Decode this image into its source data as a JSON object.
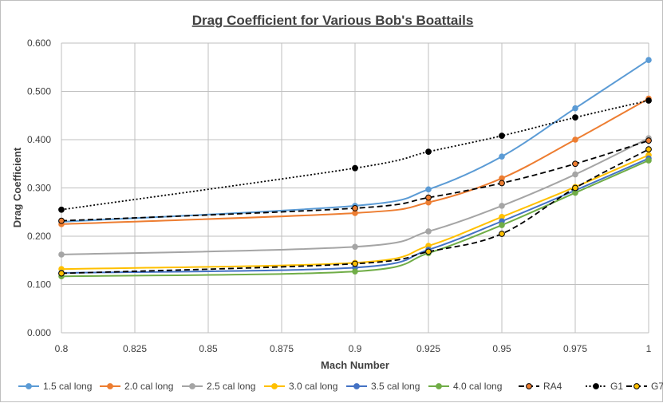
{
  "chart_data": {
    "type": "line",
    "title": "Drag Coefficient for Various Bob's Boattails",
    "xlabel": "Mach Number",
    "ylabel": "Drag Coefficient",
    "xlim": [
      0.8,
      1.0
    ],
    "ylim": [
      0.0,
      0.6
    ],
    "x_ticks": [
      "0.8",
      "0.825",
      "0.85",
      "0.875",
      "0.9",
      "0.925",
      "0.95",
      "0.975",
      "1"
    ],
    "y_ticks": [
      "0.000",
      "0.100",
      "0.200",
      "0.300",
      "0.400",
      "0.500",
      "0.600"
    ],
    "grid": true,
    "legend_position": "bottom",
    "series": [
      {
        "name": "1.5 cal long",
        "color": "#5b9bd5",
        "style": "solid",
        "marker_fill": "#5b9bd5",
        "x": [
          0.8,
          0.9,
          0.925,
          0.95,
          0.975,
          1.0
        ],
        "y": [
          0.23,
          0.263,
          0.297,
          0.365,
          0.465,
          0.565
        ]
      },
      {
        "name": "2.0 cal long",
        "color": "#ed7d31",
        "style": "solid",
        "marker_fill": "#ed7d31",
        "x": [
          0.8,
          0.9,
          0.925,
          0.95,
          0.975,
          1.0
        ],
        "y": [
          0.225,
          0.248,
          0.27,
          0.32,
          0.4,
          0.485
        ]
      },
      {
        "name": "2.5 cal long",
        "color": "#a5a5a5",
        "style": "solid",
        "marker_fill": "#a5a5a5",
        "x": [
          0.8,
          0.9,
          0.925,
          0.95,
          0.975,
          1.0
        ],
        "y": [
          0.162,
          0.178,
          0.21,
          0.263,
          0.328,
          0.403
        ]
      },
      {
        "name": "3.0 cal long",
        "color": "#ffc000",
        "style": "solid",
        "marker_fill": "#ffc000",
        "x": [
          0.8,
          0.9,
          0.925,
          0.95,
          0.975,
          1.0
        ],
        "y": [
          0.132,
          0.145,
          0.18,
          0.24,
          0.302,
          0.368
        ]
      },
      {
        "name": "3.5 cal long",
        "color": "#4472c4",
        "style": "solid",
        "marker_fill": "#4472c4",
        "x": [
          0.8,
          0.9,
          0.925,
          0.95,
          0.975,
          1.0
        ],
        "y": [
          0.124,
          0.135,
          0.172,
          0.231,
          0.295,
          0.361
        ]
      },
      {
        "name": "4.0 cal long",
        "color": "#70ad47",
        "style": "solid",
        "marker_fill": "#70ad47",
        "x": [
          0.8,
          0.9,
          0.925,
          0.95,
          0.975,
          1.0
        ],
        "y": [
          0.117,
          0.127,
          0.165,
          0.223,
          0.29,
          0.357
        ]
      },
      {
        "name": "RA4",
        "color": "#000000",
        "style": "dashed",
        "marker_fill": "#ed7d31",
        "x": [
          0.8,
          0.9,
          0.925,
          0.95,
          0.975,
          1.0
        ],
        "y": [
          0.232,
          0.258,
          0.28,
          0.31,
          0.35,
          0.398
        ]
      },
      {
        "name": "G1",
        "color": "#000000",
        "style": "dotted",
        "marker_fill": "#000000",
        "x": [
          0.8,
          0.9,
          0.925,
          0.95,
          0.975,
          1.0
        ],
        "y": [
          0.255,
          0.341,
          0.375,
          0.408,
          0.446,
          0.481
        ]
      },
      {
        "name": "G7",
        "color": "#000000",
        "style": "dashed",
        "marker_fill": "#ffc000",
        "x": [
          0.8,
          0.9,
          0.925,
          0.95,
          0.975,
          1.0
        ],
        "y": [
          0.123,
          0.143,
          0.168,
          0.205,
          0.3,
          0.38
        ]
      }
    ]
  }
}
